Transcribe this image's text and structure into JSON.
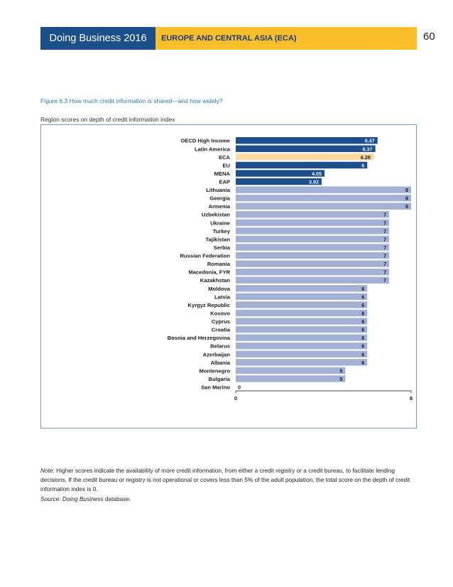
{
  "header": {
    "report_title": "Doing Business 2016",
    "section_title": "EUROPE AND CENTRAL ASIA (ECA)",
    "page_number": "60"
  },
  "figure": {
    "title": "Figure 6.3 How much credit information is shared—and how widely?",
    "subtitle": "Region scores on depth of credit information index"
  },
  "colors": {
    "header_blue": "#1b4f8a",
    "header_yellow": "#fbbf2c",
    "region_bar": "#1c4f8c",
    "eca_bar": "#fdd9a4",
    "economy_bar": "#a4b1d6"
  },
  "chart_data": {
    "type": "bar",
    "orientation": "horizontal",
    "title": "Figure 6.3 How much credit information is shared—and how widely?",
    "subtitle": "Region scores on depth of credit information index",
    "xlim": [
      0,
      8
    ],
    "x_ticks": [
      "0",
      "8"
    ],
    "categories": [
      "OECD High Income",
      "Latin America",
      "ECA",
      "EU",
      "MENA",
      "EAP",
      "Lithuania",
      "Georgia",
      "Armenia",
      "Uzbekistan",
      "Ukraine",
      "Turkey",
      "Tajikistan",
      "Serbia",
      "Russian Federation",
      "Romania",
      "Macedonia, FYR",
      "Kazakhstan",
      "Moldova",
      "Latvia",
      "Kyrgyz Republic",
      "Kosovo",
      "Cyprus",
      "Croatia",
      "Bosnia and Herzegovina",
      "Belarus",
      "Azerbaijan",
      "Albania",
      "Montenegro",
      "Bulgaria",
      "San Marino"
    ],
    "values": [
      6.47,
      6.37,
      6.28,
      6,
      4.05,
      3.92,
      8,
      8,
      8,
      7,
      7,
      7,
      7,
      7,
      7,
      7,
      7,
      7,
      6,
      6,
      6,
      6,
      6,
      6,
      6,
      6,
      6,
      6,
      5,
      5,
      0
    ],
    "value_labels": [
      "6.47",
      "6.37",
      "6.28",
      "6",
      "4.05",
      "3.92",
      "8",
      "8",
      "8",
      "7",
      "7",
      "7",
      "7",
      "7",
      "7",
      "7",
      "7",
      "7",
      "6",
      "6",
      "6",
      "6",
      "6",
      "6",
      "6",
      "6",
      "6",
      "6",
      "5",
      "5",
      "0"
    ],
    "groups": [
      "region",
      "region",
      "eca",
      "region",
      "region",
      "region",
      "economy",
      "economy",
      "economy",
      "economy",
      "economy",
      "economy",
      "economy",
      "economy",
      "economy",
      "economy",
      "economy",
      "economy",
      "economy",
      "economy",
      "economy",
      "economy",
      "economy",
      "economy",
      "economy",
      "economy",
      "economy",
      "economy",
      "economy",
      "economy",
      "economy"
    ]
  },
  "notes": {
    "note_label": "Note:",
    "note_text": " Higher scores indicate the availability of more credit information, from either a credit registry or a credit bureau, to facilitate lending decisions.  If the credit bureau or registry is not operational or covers less than 5% of the adult population, the total score on the depth of credit information index is 0.",
    "source_label": "Source:",
    "source_name": "Doing Business",
    "source_text": " database."
  }
}
